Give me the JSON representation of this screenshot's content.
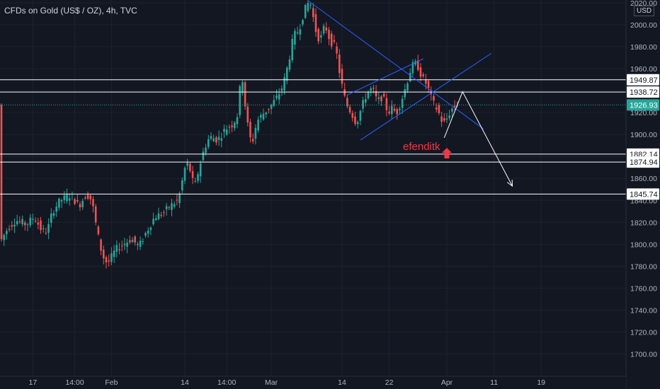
{
  "header": {
    "symbol_title": "CFDs on Gold (US$ / OZ), 4h, TVC",
    "currency": "USD"
  },
  "annotation": {
    "author": "efenditk"
  },
  "colors": {
    "background": "#131722",
    "up_candle": "#26a69a",
    "down_candle": "#ef5350",
    "trendline": "#2962ff",
    "level_line": "#ffffff",
    "current_price": "#26a69a",
    "arrow_marker": "#f23645"
  },
  "chart_data": {
    "type": "candlestick",
    "timeframe": "4h",
    "ylim": [
      1690,
      2020
    ],
    "y_ticks": [
      "2020.00",
      "2000.00",
      "1980.00",
      "1960.00",
      "1940.00",
      "1920.00",
      "1900.00",
      "1880.00",
      "1860.00",
      "1840.00",
      "1820.00",
      "1800.00",
      "1780.00",
      "1760.00",
      "1740.00",
      "1720.00",
      "1700.00"
    ],
    "x_ticks": [
      "17",
      "14:00",
      "Feb",
      "14",
      "14:00",
      "Mar",
      "14",
      "22",
      "Apr",
      "11",
      "19"
    ],
    "x_tick_bars": [
      12,
      28,
      42,
      70,
      86,
      103,
      130,
      148,
      170,
      188,
      206
    ],
    "horizontal_levels": [
      {
        "label": "1949.87",
        "value": 1949.87
      },
      {
        "label": "1938.72",
        "value": 1938.72
      },
      {
        "label": "1882.14",
        "value": 1882.14
      },
      {
        "label": "1874.94",
        "value": 1874.94
      },
      {
        "label": "1845.74",
        "value": 1845.74
      }
    ],
    "current_price": {
      "label": "1926.93",
      "value": 1926.93
    },
    "price_path": [
      [
        0,
        1802
      ],
      [
        3,
        1815
      ],
      [
        6,
        1822
      ],
      [
        10,
        1818
      ],
      [
        13,
        1825
      ],
      [
        16,
        1812
      ],
      [
        18,
        1812
      ],
      [
        20,
        1830
      ],
      [
        23,
        1840
      ],
      [
        27,
        1845
      ],
      [
        30,
        1835
      ],
      [
        33,
        1846
      ],
      [
        35,
        1840
      ],
      [
        37,
        1812
      ],
      [
        39,
        1790
      ],
      [
        41,
        1782
      ],
      [
        44,
        1795
      ],
      [
        47,
        1800
      ],
      [
        50,
        1805
      ],
      [
        53,
        1798
      ],
      [
        56,
        1812
      ],
      [
        59,
        1825
      ],
      [
        62,
        1828
      ],
      [
        65,
        1835
      ],
      [
        68,
        1840
      ],
      [
        71,
        1875
      ],
      [
        73,
        1865
      ],
      [
        74,
        1850
      ],
      [
        76,
        1870
      ],
      [
        78,
        1888
      ],
      [
        80,
        1898
      ],
      [
        83,
        1895
      ],
      [
        86,
        1905
      ],
      [
        89,
        1910
      ],
      [
        91,
        1920
      ],
      [
        92,
        1962
      ],
      [
        94,
        1915
      ],
      [
        96,
        1890
      ],
      [
        98,
        1912
      ],
      [
        100,
        1918
      ],
      [
        103,
        1925
      ],
      [
        106,
        1935
      ],
      [
        108,
        1945
      ],
      [
        110,
        1965
      ],
      [
        112,
        1990
      ],
      [
        114,
        1995
      ],
      [
        116,
        2012
      ],
      [
        118,
        2022
      ],
      [
        119,
        2015
      ],
      [
        120,
        1998
      ],
      [
        122,
        1985
      ],
      [
        124,
        2000
      ],
      [
        126,
        1985
      ],
      [
        128,
        1980
      ],
      [
        130,
        1950
      ],
      [
        132,
        1928
      ],
      [
        134,
        1920
      ],
      [
        136,
        1910
      ],
      [
        138,
        1925
      ],
      [
        140,
        1938
      ],
      [
        142,
        1942
      ],
      [
        144,
        1930
      ],
      [
        146,
        1935
      ],
      [
        148,
        1920
      ],
      [
        150,
        1925
      ],
      [
        151,
        1918
      ],
      [
        153,
        1930
      ],
      [
        155,
        1945
      ],
      [
        157,
        1962
      ],
      [
        159,
        1965
      ],
      [
        161,
        1952
      ],
      [
        163,
        1945
      ],
      [
        165,
        1930
      ],
      [
        167,
        1922
      ],
      [
        169,
        1910
      ],
      [
        170,
        1912
      ],
      [
        172,
        1922
      ],
      [
        174,
        1927
      ]
    ],
    "trendlines": [
      {
        "from": [
          117,
          2022
        ],
        "to": [
          184,
          1905
        ],
        "color": "#2962ff"
      },
      {
        "from": [
          132,
          1936
        ],
        "to": [
          161,
          1969
        ],
        "color": "#2962ff"
      },
      {
        "from": [
          137,
          1895
        ],
        "to": [
          187,
          1974
        ],
        "color": "#2962ff"
      }
    ],
    "projection": [
      [
        169,
        1897
      ],
      [
        176,
        1939
      ],
      [
        195,
        1853
      ]
    ],
    "up_arrow": {
      "bar": 170,
      "value": 1884
    }
  }
}
